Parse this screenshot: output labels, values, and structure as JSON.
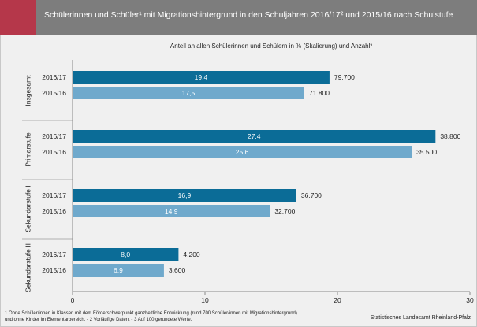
{
  "header": {
    "title": "Schülerinnen und Schüler¹ mit Migrationshintergrund in den Schuljahren 2016/17² und 2015/16 nach Schulstufe",
    "accent_color": "#b5374a",
    "bar_color": "#7d7d7d"
  },
  "subtitle": "Anteil an allen Schülerinnen und Schülern in % (Skalierung) und Anzahl³",
  "footnote": "1 Ohne Schüler/innen in Klassen mit dem Förderschwerpunkt ganzheitliche Entwicklung (rund 700 Schüler/innen mit Migrationshintergrund) und ohne Kinder im Elementarbereich. - 2 Vorläufige Daten. - 3 Auf 100 gerundete Werte.",
  "source": "Statistisches Landesamt Rheinland-Pfalz",
  "chart_data": {
    "type": "bar",
    "orientation": "horizontal",
    "xlim": [
      0,
      30
    ],
    "xticks": [
      "0",
      "10",
      "20",
      "30"
    ],
    "grid": false,
    "colors": {
      "2016/17": "#0b6c97",
      "2015/16": "#6fa9cc"
    },
    "groups": [
      {
        "name": "Insgesamt",
        "bars": [
          {
            "year": "2016/17",
            "value": 19.4,
            "value_label": "19,4",
            "count_label": "79.700"
          },
          {
            "year": "2015/16",
            "value": 17.5,
            "value_label": "17,5",
            "count_label": "71.800"
          }
        ]
      },
      {
        "name": "Primarstufe",
        "bars": [
          {
            "year": "2016/17",
            "value": 27.4,
            "value_label": "27,4",
            "count_label": "38.800"
          },
          {
            "year": "2015/16",
            "value": 25.6,
            "value_label": "25,6",
            "count_label": "35.500"
          }
        ]
      },
      {
        "name": "Sekundarstufe I",
        "bars": [
          {
            "year": "2016/17",
            "value": 16.9,
            "value_label": "16,9",
            "count_label": "36.700"
          },
          {
            "year": "2015/16",
            "value": 14.9,
            "value_label": "14,9",
            "count_label": "32.700"
          }
        ]
      },
      {
        "name": "Sekundarstufe II",
        "bars": [
          {
            "year": "2016/17",
            "value": 8.0,
            "value_label": "8,0",
            "count_label": "4.200"
          },
          {
            "year": "2015/16",
            "value": 6.9,
            "value_label": "6,9",
            "count_label": "3.600"
          }
        ]
      }
    ]
  }
}
